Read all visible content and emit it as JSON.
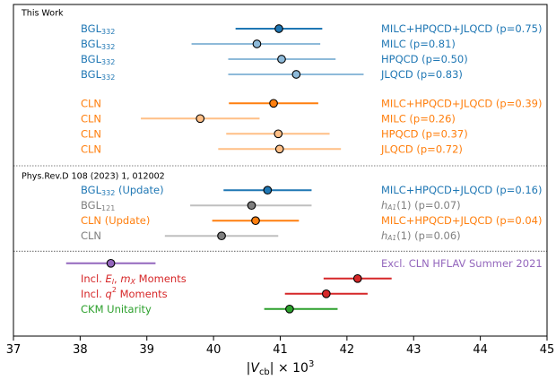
{
  "chart_data": {
    "type": "scatter",
    "xlabel_base": "|V",
    "xlabel_sub": "cb",
    "xlabel_rest": "| × 10",
    "xlabel_sup": "3",
    "xlim": [
      37,
      45
    ],
    "xticks": [
      37,
      38,
      39,
      40,
      41,
      42,
      43,
      44,
      45
    ],
    "grid": false,
    "sections": [
      {
        "title": "This Work",
        "row": 0
      },
      {
        "title": "Phys.Rev.D 108 (2023) 1, 012002",
        "row": 10.7
      }
    ],
    "separators": [
      10,
      15.6
    ],
    "colors": {
      "blue": "#1f77b4",
      "blue_light": "#8ebad9",
      "orange": "#ff7f0e",
      "orange_light": "#ffbf86",
      "gray": "#7f7f7f",
      "gray_light": "#bfbfbf",
      "purple": "#9467bd",
      "red": "#d62728",
      "green": "#2ca02c"
    },
    "points": [
      {
        "row": 1,
        "x": 40.98,
        "lo": 40.33,
        "hi": 41.63,
        "color": "#1f77b4",
        "bar": "#1f77b4",
        "left": "BGL",
        "left_sub": "332",
        "left_tail": "",
        "right": "MILC+HPQCD+JLQCD (p=0.75)",
        "right_color": "#1f77b4"
      },
      {
        "row": 2,
        "x": 40.65,
        "lo": 39.67,
        "hi": 41.6,
        "color": "#8ebad9",
        "bar": "#8ebad9",
        "left": "BGL",
        "left_sub": "332",
        "left_tail": "",
        "right": "MILC (p=0.81)",
        "right_color": "#1f77b4"
      },
      {
        "row": 3,
        "x": 41.02,
        "lo": 40.22,
        "hi": 41.83,
        "color": "#8ebad9",
        "bar": "#8ebad9",
        "left": "BGL",
        "left_sub": "332",
        "left_tail": "",
        "right": "HPQCD (p=0.50)",
        "right_color": "#1f77b4"
      },
      {
        "row": 4,
        "x": 41.24,
        "lo": 40.22,
        "hi": 42.25,
        "color": "#8ebad9",
        "bar": "#8ebad9",
        "left": "BGL",
        "left_sub": "332",
        "left_tail": "",
        "right": "JLQCD (p=0.83)",
        "right_color": "#1f77b4"
      },
      {
        "row": 5.9,
        "x": 40.9,
        "lo": 40.23,
        "hi": 41.57,
        "color": "#ff7f0e",
        "bar": "#ff7f0e",
        "left": "CLN",
        "left_sub": "",
        "left_tail": "",
        "right": "MILC+HPQCD+JLQCD (p=0.39)",
        "right_color": "#ff7f0e"
      },
      {
        "row": 6.9,
        "x": 39.8,
        "lo": 38.91,
        "hi": 40.69,
        "color": "#ffbf86",
        "bar": "#ffbf86",
        "left": "CLN",
        "left_sub": "",
        "left_tail": "",
        "right": "MILC (p=0.26)",
        "right_color": "#ff7f0e"
      },
      {
        "row": 7.9,
        "x": 40.97,
        "lo": 40.19,
        "hi": 41.74,
        "color": "#ffbf86",
        "bar": "#ffbf86",
        "left": "CLN",
        "left_sub": "",
        "left_tail": "",
        "right": "HPQCD (p=0.37)",
        "right_color": "#ff7f0e"
      },
      {
        "row": 8.9,
        "x": 40.99,
        "lo": 40.07,
        "hi": 41.91,
        "color": "#ffbf86",
        "bar": "#ffbf86",
        "left": "CLN",
        "left_sub": "",
        "left_tail": "",
        "right": "JLQCD (p=0.72)",
        "right_color": "#ff7f0e"
      },
      {
        "row": 11.6,
        "x": 40.81,
        "lo": 40.15,
        "hi": 41.47,
        "color": "#1f77b4",
        "bar": "#1f77b4",
        "left": "BGL",
        "left_sub": "332",
        "left_tail": " (Update)",
        "right": "MILC+HPQCD+JLQCD (p=0.16)",
        "right_color": "#1f77b4"
      },
      {
        "row": 12.6,
        "x": 40.57,
        "lo": 39.65,
        "hi": 41.47,
        "color": "#7f7f7f",
        "bar": "#bfbfbf",
        "left": "BGL",
        "left_sub": "121",
        "left_tail": "",
        "right_pre": "h",
        "right_sub": "A1",
        "right": "(1) (p=0.07)",
        "right_color": "#7f7f7f",
        "left_color": "#7f7f7f"
      },
      {
        "row": 13.6,
        "x": 40.63,
        "lo": 39.98,
        "hi": 41.28,
        "color": "#ff7f0e",
        "bar": "#ff7f0e",
        "left": "CLN",
        "left_sub": "",
        "left_tail": " (Update)",
        "right": "MILC+HPQCD+JLQCD (p=0.04)",
        "right_color": "#ff7f0e"
      },
      {
        "row": 14.6,
        "x": 40.12,
        "lo": 39.27,
        "hi": 40.97,
        "color": "#7f7f7f",
        "bar": "#bfbfbf",
        "left": "CLN",
        "left_sub": "",
        "left_tail": "",
        "right_pre": "h",
        "right_sub": "A1",
        "right": "(1) (p=0.06)",
        "right_color": "#7f7f7f",
        "left_color": "#7f7f7f"
      },
      {
        "row": 16.4,
        "x": 38.46,
        "lo": 37.79,
        "hi": 39.13,
        "color": "#9467bd",
        "bar": "#9467bd",
        "right": "Excl. CLN HFLAV Summer 2021",
        "right_color": "#9467bd"
      },
      {
        "row": 17.4,
        "x": 42.16,
        "lo": 41.65,
        "hi": 42.67,
        "color": "#d62728",
        "bar": "#d62728"
      },
      {
        "row": 18.4,
        "x": 41.69,
        "lo": 41.07,
        "hi": 42.31,
        "color": "#d62728",
        "bar": "#d62728"
      },
      {
        "row": 19.4,
        "x": 41.14,
        "lo": 40.76,
        "hi": 41.86,
        "color": "#2ca02c",
        "bar": "#2ca02c"
      }
    ],
    "bottom_labels": [
      {
        "row": 17.4,
        "color": "#d62728",
        "parts": [
          "Incl. ",
          "E",
          "l",
          ", ",
          "m",
          "X",
          " Moments"
        ]
      },
      {
        "row": 18.4,
        "color": "#d62728",
        "parts": [
          "Incl. ",
          "q",
          "2",
          " Moments"
        ]
      },
      {
        "row": 19.4,
        "color": "#2ca02c",
        "parts": [
          "CKM Unitarity"
        ]
      }
    ]
  }
}
